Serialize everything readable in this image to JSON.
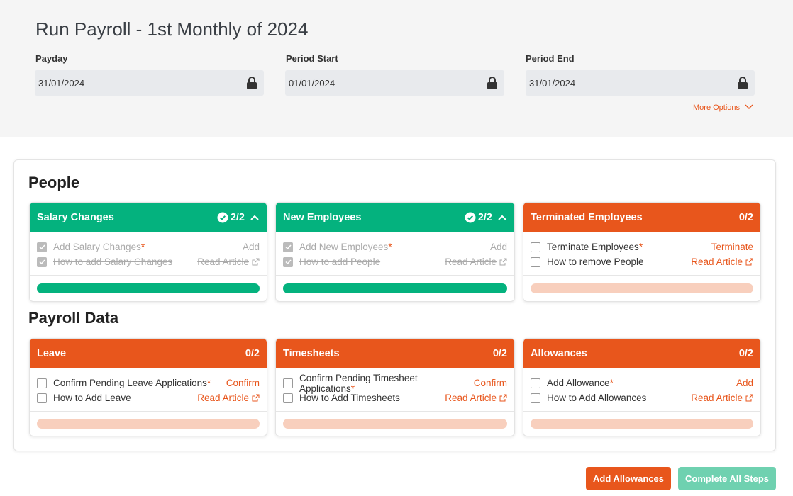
{
  "header": {
    "title": "Run Payroll - 1st Monthly of 2024",
    "fields": [
      {
        "label": "Payday",
        "value": "31/01/2024"
      },
      {
        "label": "Period Start",
        "value": "01/01/2024"
      },
      {
        "label": "Period End",
        "value": "31/01/2024"
      }
    ],
    "more_options": "More Options"
  },
  "sections": [
    {
      "title": "People",
      "cards": [
        {
          "title": "Salary Changes",
          "count": "2/2",
          "tasks": [
            {
              "label": "Add Salary Changes",
              "required": "*",
              "action": "Add"
            },
            {
              "label": "How to add Salary Changes",
              "action": "Read Article"
            }
          ]
        },
        {
          "title": "New Employees",
          "count": "2/2",
          "tasks": [
            {
              "label": "Add New Employees",
              "required": "*",
              "action": "Add"
            },
            {
              "label": "How to add People",
              "action": "Read Article"
            }
          ]
        },
        {
          "title": "Terminated Employees",
          "count": "0/2",
          "tasks": [
            {
              "label": "Terminate Employees",
              "required": "*",
              "action": "Terminate"
            },
            {
              "label": "How to remove People",
              "action": "Read Article"
            }
          ]
        }
      ]
    },
    {
      "title": "Payroll Data",
      "cards": [
        {
          "title": "Leave",
          "count": "0/2",
          "tasks": [
            {
              "label": "Confirm Pending Leave Applications",
              "required": "*",
              "action": "Confirm"
            },
            {
              "label": "How to Add Leave",
              "action": "Read Article"
            }
          ]
        },
        {
          "title": "Timesheets",
          "count": "0/2",
          "tasks": [
            {
              "label": "Confirm Pending Timesheet Applications",
              "required": "*",
              "action": "Confirm"
            },
            {
              "label": "How to Add Timesheets",
              "action": "Read Article"
            }
          ]
        },
        {
          "title": "Allowances",
          "count": "0/2",
          "tasks": [
            {
              "label": "Add Allowance",
              "required": "*",
              "action": "Add"
            },
            {
              "label": "How to Add Allowances",
              "action": "Read Article"
            }
          ]
        }
      ]
    }
  ],
  "buttons": [
    "Add Allowances",
    "Complete All Steps"
  ]
}
